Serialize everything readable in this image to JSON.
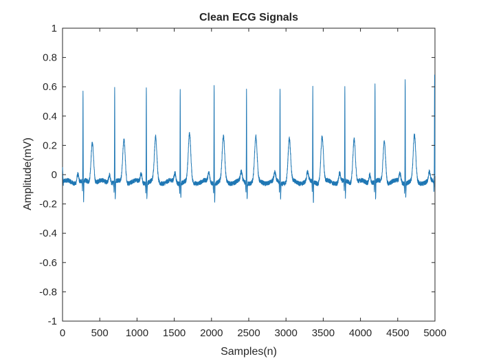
{
  "chart_data": {
    "type": "line",
    "title": "Clean ECG Signals",
    "xlabel": "Samples(n)",
    "ylabel": "Amplitude(mV)",
    "xlim": [
      0,
      5000
    ],
    "ylim": [
      -1,
      1
    ],
    "xticks": [
      0,
      500,
      1000,
      1500,
      2000,
      2500,
      3000,
      3500,
      4000,
      4500,
      5000
    ],
    "yticks": [
      -1,
      -0.8,
      -0.6,
      -0.4,
      -0.2,
      0,
      0.2,
      0.4,
      0.6,
      0.8,
      1
    ],
    "ytick_labels": [
      "-1",
      "-0.8",
      "-0.6",
      "-0.4",
      "-0.2",
      "0",
      "0.2",
      "0.4",
      "0.6",
      "0.8",
      "1"
    ],
    "grid": false,
    "line_color": "#1f77b4",
    "baseline_mV": -0.05,
    "beats": [
      {
        "r_sample": 275,
        "r_peak_mV": 0.56,
        "s_min_mV": -0.19,
        "t_peak_mV": 0.23
      },
      {
        "r_sample": 700,
        "r_peak_mV": 0.6,
        "s_min_mV": -0.17,
        "t_peak_mV": 0.24
      },
      {
        "r_sample": 1125,
        "r_peak_mV": 0.61,
        "s_min_mV": -0.16,
        "t_peak_mV": 0.25
      },
      {
        "r_sample": 1580,
        "r_peak_mV": 0.59,
        "s_min_mV": -0.15,
        "t_peak_mV": 0.27
      },
      {
        "r_sample": 2035,
        "r_peak_mV": 0.62,
        "s_min_mV": -0.18,
        "t_peak_mV": 0.25
      },
      {
        "r_sample": 2470,
        "r_peak_mV": 0.58,
        "s_min_mV": -0.15,
        "t_peak_mV": 0.25
      },
      {
        "r_sample": 2920,
        "r_peak_mV": 0.6,
        "s_min_mV": -0.16,
        "t_peak_mV": 0.24
      },
      {
        "r_sample": 3360,
        "r_peak_mV": 0.59,
        "s_min_mV": -0.19,
        "t_peak_mV": 0.26
      },
      {
        "r_sample": 3790,
        "r_peak_mV": 0.6,
        "s_min_mV": -0.16,
        "t_peak_mV": 0.25
      },
      {
        "r_sample": 4195,
        "r_peak_mV": 0.62,
        "s_min_mV": -0.17,
        "t_peak_mV": 0.23
      },
      {
        "r_sample": 4600,
        "r_peak_mV": 0.67,
        "s_min_mV": -0.15,
        "t_peak_mV": 0.26
      },
      {
        "r_sample": 4995,
        "r_peak_mV": 0.68,
        "s_min_mV": -0.1,
        "t_peak_mV": 0.0
      }
    ]
  }
}
